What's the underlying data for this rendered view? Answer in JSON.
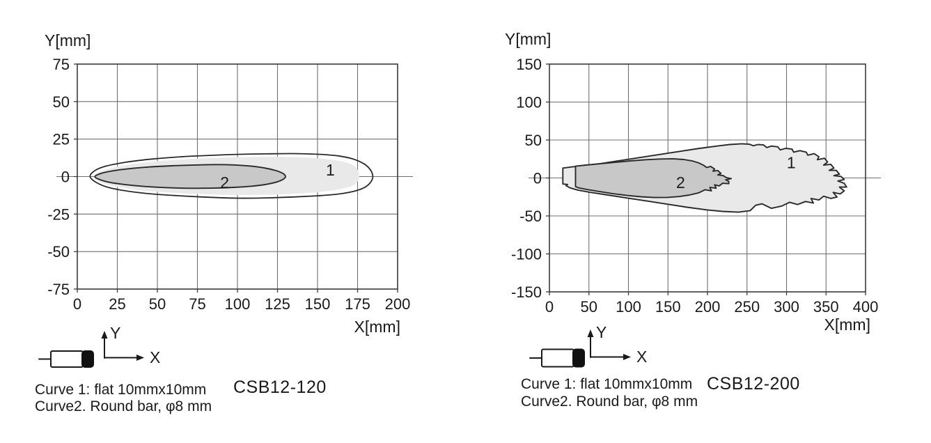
{
  "page": {
    "background": "#ffffff"
  },
  "colors": {
    "curve1_fill": "#e9e9e9",
    "curve2_fill": "#c8c8c8",
    "outline": "#2a2a2a",
    "grid": "#6f6f6f",
    "border": "#3a3a3a",
    "text": "#1a1a1a",
    "sensor_cap": "#111111"
  },
  "chart_data": [
    {
      "type": "area",
      "model": "CSB12-120",
      "x_axis_label": "X[mm]",
      "y_axis_label": "Y[mm]",
      "xlim": [
        0,
        200
      ],
      "ylim": [
        -75,
        75
      ],
      "x_ticks": [
        0,
        25,
        50,
        75,
        100,
        125,
        150,
        175,
        200
      ],
      "y_ticks": [
        75,
        50,
        25,
        0,
        -25,
        -50,
        -75
      ],
      "grid": true,
      "legend": [
        "Curve 1: flat 10mmx10mm",
        "Curve2. Round bar, φ8 mm"
      ],
      "icon": {
        "x_label": "X",
        "y_label": "Y"
      },
      "curve_labels": [
        {
          "text": "1",
          "x": 158,
          "y": 4.5
        },
        {
          "text": "2",
          "x": 92,
          "y": -4
        }
      ],
      "series": [
        {
          "name": "curve-1-fill",
          "role": "fill-light",
          "smooth": true,
          "points": [
            [
              10.5,
              0
            ],
            [
              14,
              3.2
            ],
            [
              22,
              5.8
            ],
            [
              34,
              8.2
            ],
            [
              48,
              10
            ],
            [
              65,
              11.4
            ],
            [
              84,
              12.4
            ],
            [
              104,
              13
            ],
            [
              124,
              13.2
            ],
            [
              140,
              12.8
            ],
            [
              153,
              11.9
            ],
            [
              163,
              10.6
            ],
            [
              170,
              8.6
            ],
            [
              174.5,
              5.5
            ],
            [
              176,
              0
            ],
            [
              174.5,
              -4
            ],
            [
              170,
              -6.8
            ],
            [
              162,
              -8.8
            ],
            [
              151,
              -10.3
            ],
            [
              136,
              -11.4
            ],
            [
              118,
              -12.1
            ],
            [
              99,
              -12.3
            ],
            [
              80,
              -11.8
            ],
            [
              61,
              -10.9
            ],
            [
              44,
              -9.6
            ],
            [
              30,
              -7.8
            ],
            [
              19,
              -5.5
            ],
            [
              12.5,
              -2.8
            ]
          ]
        },
        {
          "name": "curve-1-outline",
          "role": "outline",
          "smooth": true,
          "points": [
            [
              8,
              0
            ],
            [
              11,
              4
            ],
            [
              18,
              7
            ],
            [
              30,
              9.5
            ],
            [
              45,
              11.5
            ],
            [
              62,
              13
            ],
            [
              80,
              14
            ],
            [
              100,
              14.8
            ],
            [
              120,
              15.2
            ],
            [
              138,
              15.3
            ],
            [
              152,
              14.8
            ],
            [
              163,
              13.8
            ],
            [
              172,
              11.8
            ],
            [
              179,
              8.5
            ],
            [
              183,
              4.5
            ],
            [
              184.5,
              0
            ],
            [
              183,
              -4
            ],
            [
              179,
              -7.5
            ],
            [
              172,
              -10
            ],
            [
              162,
              -11.8
            ],
            [
              150,
              -12.8
            ],
            [
              135,
              -13.6
            ],
            [
              118,
              -14.2
            ],
            [
              100,
              -14.4
            ],
            [
              82,
              -13.8
            ],
            [
              64,
              -12.8
            ],
            [
              47,
              -11.6
            ],
            [
              32,
              -9.8
            ],
            [
              20,
              -7.4
            ],
            [
              12,
              -4
            ]
          ]
        },
        {
          "name": "curve-2",
          "role": "fill-dark",
          "smooth": true,
          "points": [
            [
              11,
              0
            ],
            [
              15,
              2.2
            ],
            [
              22,
              3.8
            ],
            [
              32,
              5.2
            ],
            [
              45,
              6.4
            ],
            [
              59,
              7.2
            ],
            [
              73,
              7.7
            ],
            [
              87,
              8
            ],
            [
              99,
              7.7
            ],
            [
              109,
              6.9
            ],
            [
              117,
              5.7
            ],
            [
              124,
              4
            ],
            [
              128.5,
              2
            ],
            [
              130,
              0
            ],
            [
              128.5,
              -1.8
            ],
            [
              124.5,
              -3.6
            ],
            [
              118,
              -5.2
            ],
            [
              109,
              -6.4
            ],
            [
              98,
              -7.2
            ],
            [
              85,
              -7.7
            ],
            [
              71,
              -7.8
            ],
            [
              56,
              -7.4
            ],
            [
              42,
              -6.6
            ],
            [
              30,
              -5.4
            ],
            [
              20,
              -3.8
            ],
            [
              14,
              -2
            ]
          ]
        }
      ]
    },
    {
      "type": "area",
      "model": "CSB12-200",
      "x_axis_label": "X[mm]",
      "y_axis_label": "Y[mm]",
      "xlim": [
        0,
        400
      ],
      "ylim": [
        -150,
        150
      ],
      "x_ticks": [
        0,
        50,
        100,
        150,
        200,
        250,
        300,
        350,
        400
      ],
      "y_ticks": [
        150,
        100,
        50,
        0,
        -50,
        -100,
        -150
      ],
      "grid": true,
      "legend": [
        "Curve 1: flat 10mmx10mm",
        "Curve2. Round bar, φ8 mm"
      ],
      "icon": {
        "x_label": "X",
        "y_label": "Y"
      },
      "curve_labels": [
        {
          "text": "1",
          "x": 306,
          "y": 20
        },
        {
          "text": "2",
          "x": 166,
          "y": -6
        }
      ],
      "series": [
        {
          "name": "curve-1",
          "role": "fill-light-stroked",
          "smooth": false,
          "points": [
            [
              17,
              13
            ],
            [
              28,
              14.5
            ],
            [
              45,
              16.5
            ],
            [
              65,
              19
            ],
            [
              90,
              23
            ],
            [
              115,
              27
            ],
            [
              140,
              31
            ],
            [
              165,
              35
            ],
            [
              190,
              39
            ],
            [
              212,
              42
            ],
            [
              228,
              44
            ],
            [
              243,
              45
            ],
            [
              253,
              44.5
            ],
            [
              258,
              42.5
            ],
            [
              264,
              44
            ],
            [
              271,
              43.5
            ],
            [
              275,
              40
            ],
            [
              281,
              42
            ],
            [
              289,
              41
            ],
            [
              292,
              37
            ],
            [
              299,
              39
            ],
            [
              307,
              38
            ],
            [
              309,
              34
            ],
            [
              317,
              36
            ],
            [
              325,
              34
            ],
            [
              327,
              30
            ],
            [
              335,
              32
            ],
            [
              341,
              28
            ],
            [
              339,
              24
            ],
            [
              348,
              26
            ],
            [
              352,
              21
            ],
            [
              347,
              17
            ],
            [
              356,
              18
            ],
            [
              360,
              13
            ],
            [
              354,
              10
            ],
            [
              363,
              10
            ],
            [
              367,
              5
            ],
            [
              360,
              3
            ],
            [
              369,
              2
            ],
            [
              373,
              -2
            ],
            [
              365,
              -4
            ],
            [
              373,
              -7
            ],
            [
              376,
              -12
            ],
            [
              367,
              -12
            ],
            [
              373,
              -17
            ],
            [
              368,
              -21
            ],
            [
              359,
              -19
            ],
            [
              364,
              -25
            ],
            [
              356,
              -27
            ],
            [
              347,
              -24
            ],
            [
              341,
              -29
            ],
            [
              331,
              -27
            ],
            [
              334,
              -33
            ],
            [
              324,
              -31
            ],
            [
              314,
              -35
            ],
            [
              304,
              -32
            ],
            [
              294,
              -37
            ],
            [
              281,
              -40
            ],
            [
              269,
              -34
            ],
            [
              261,
              -36
            ],
            [
              254,
              -43
            ],
            [
              239,
              -45
            ],
            [
              219,
              -44
            ],
            [
              199,
              -42
            ],
            [
              174,
              -38.5
            ],
            [
              149,
              -34.5
            ],
            [
              124,
              -30.5
            ],
            [
              99,
              -26.5
            ],
            [
              74,
              -22.5
            ],
            [
              52,
              -19
            ],
            [
              36,
              -16
            ],
            [
              26,
              -13
            ],
            [
              21,
              -10
            ],
            [
              23,
              -8.5
            ],
            [
              17,
              -8
            ],
            [
              17,
              -5
            ]
          ]
        },
        {
          "name": "curve-2",
          "role": "fill-dark",
          "smooth": false,
          "points": [
            [
              33,
              15.5
            ],
            [
              46,
              17
            ],
            [
              62,
              18.5
            ],
            [
              82,
              20.5
            ],
            [
              102,
              22.5
            ],
            [
              122,
              24
            ],
            [
              140,
              25
            ],
            [
              156,
              25.3
            ],
            [
              170,
              24.3
            ],
            [
              181,
              22.4
            ],
            [
              189,
              19.8
            ],
            [
              195,
              16.8
            ],
            [
              199,
              13.8
            ],
            [
              204,
              15.2
            ],
            [
              209,
              11.8
            ],
            [
              207,
              9
            ],
            [
              213,
              9.8
            ],
            [
              217,
              6
            ],
            [
              213,
              4
            ],
            [
              220,
              3
            ],
            [
              224,
              0.5
            ],
            [
              230,
              -0.8
            ],
            [
              223,
              -2.5
            ],
            [
              227,
              -4.5
            ],
            [
              227,
              -7.5
            ],
            [
              219,
              -7
            ],
            [
              215,
              -10.5
            ],
            [
              209,
              -9
            ],
            [
              211,
              -13.5
            ],
            [
              203,
              -12.5
            ],
            [
              205,
              -17
            ],
            [
              197,
              -15.5
            ],
            [
              189,
              -19.5
            ],
            [
              177,
              -22.5
            ],
            [
              164,
              -24.5
            ],
            [
              149,
              -25.6
            ],
            [
              133,
              -25.8
            ],
            [
              116,
              -24.8
            ],
            [
              98,
              -23
            ],
            [
              79,
              -20.5
            ],
            [
              61,
              -17.5
            ],
            [
              47,
              -15
            ],
            [
              37,
              -13
            ],
            [
              33,
              -11.5
            ]
          ]
        }
      ]
    }
  ]
}
